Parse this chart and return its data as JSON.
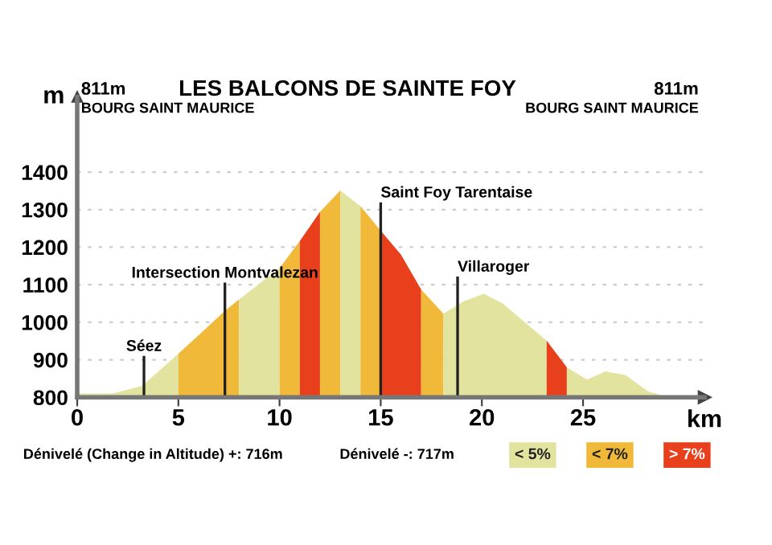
{
  "chart_data": {
    "type": "area",
    "title": "LES BALCONS DE SAINTE FOY",
    "xlabel": "km",
    "ylabel": "m",
    "series": [
      {
        "name": "< 5%",
        "color": "#e3e3a0",
        "x": [
          0,
          1.75,
          3.2,
          5.0
        ],
        "values": [
          810,
          810,
          830,
          916
        ]
      },
      {
        "name": "< 7%",
        "color": "#f0b93a",
        "x": [
          5.0,
          7.3,
          8.0
        ],
        "values": [
          916,
          1030,
          1061
        ]
      },
      {
        "color": "#e3e3a0",
        "x": [
          8.0,
          10.0
        ],
        "values": [
          1061,
          1144
        ]
      },
      {
        "color": "#f0b93a",
        "x": [
          10.0,
          11.0
        ],
        "values": [
          1144,
          1216
        ]
      },
      {
        "name": "> 7%",
        "color": "#e8401c",
        "x": [
          11.0,
          12.0
        ],
        "values": [
          1216,
          1294
        ]
      },
      {
        "color": "#f0b93a",
        "x": [
          12.0,
          13.0
        ],
        "values": [
          1294,
          1351
        ]
      },
      {
        "color": "#e3e3a0",
        "x": [
          13.0,
          14.0
        ],
        "values": [
          1351,
          1309
        ]
      },
      {
        "color": "#f0b93a",
        "x": [
          14.0,
          15.0
        ],
        "values": [
          1309,
          1244
        ]
      },
      {
        "color": "#e8401c",
        "x": [
          15.0,
          16.0,
          17.0
        ],
        "values": [
          1244,
          1180,
          1087
        ]
      },
      {
        "color": "#f0b93a",
        "x": [
          17.0,
          18.1
        ],
        "values": [
          1087,
          1023
        ]
      },
      {
        "color": "#e3e3a0",
        "x": [
          18.1,
          19.1,
          20.1,
          21.0,
          23.2
        ],
        "values": [
          1023,
          1056,
          1076,
          1051,
          951
        ]
      },
      {
        "color": "#e8401c",
        "x": [
          23.2,
          24.2
        ],
        "values": [
          951,
          880
        ]
      },
      {
        "color": "#e3e3a0",
        "x": [
          24.2,
          25.2,
          26.1,
          27.1,
          28.2,
          29.2
        ],
        "values": [
          880,
          847,
          869,
          859,
          816,
          800
        ]
      }
    ],
    "xlim": [
      0,
      31
    ],
    "ylim": [
      800,
      1600
    ],
    "xticks": [
      0,
      5,
      10,
      15,
      20,
      25
    ],
    "yticks": [
      800,
      900,
      1000,
      1100,
      1200,
      1300,
      1400
    ],
    "grid": "y",
    "legend": "bottom right",
    "ref_lines": [
      {
        "axis": "x",
        "value": 3.3,
        "label": "Séez",
        "color": "#222222"
      },
      {
        "axis": "x",
        "value": 7.3,
        "label": "Intersection Montvalezan",
        "color": "#222222"
      },
      {
        "axis": "x",
        "value": 15.0,
        "label": "Saint Foy Tarentaise",
        "color": "#222222"
      },
      {
        "axis": "x",
        "value": 18.8,
        "label": "Villaroger",
        "color": "#222222"
      }
    ],
    "annotations": [
      "811m",
      "BOURG SAINT MAURICE",
      "811m",
      "BOURG SAINT MAURICE",
      "Dénivelé (Change in Altitude) +: 716m",
      "Dénivelé -: 717m"
    ]
  }
}
